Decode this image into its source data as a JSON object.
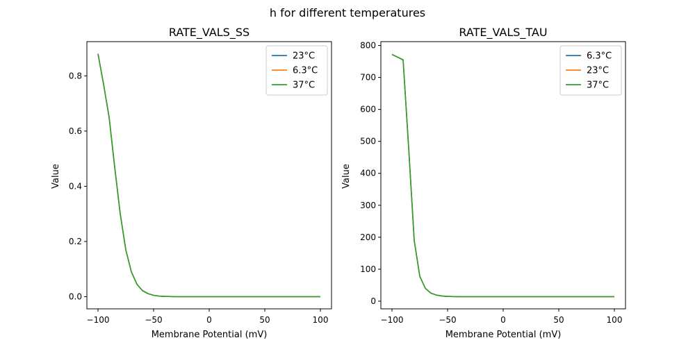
{
  "figure": {
    "suptitle": "h for different temperatures"
  },
  "chart_data": [
    {
      "type": "line",
      "title": "RATE_VALS_SS",
      "xlabel": "Membrane Potential (mV)",
      "ylabel": "Value",
      "xlim": [
        -110,
        110
      ],
      "ylim": [
        -0.044,
        0.924
      ],
      "xticks": [
        -100,
        -50,
        0,
        50,
        100
      ],
      "xtick_labels": [
        "−100",
        "−50",
        "0",
        "50",
        "100"
      ],
      "yticks": [
        0.0,
        0.2,
        0.4,
        0.6,
        0.8
      ],
      "ytick_labels": [
        "0.0",
        "0.2",
        "0.4",
        "0.6",
        "0.8"
      ],
      "grid": false,
      "legend": "upper-right",
      "x": [
        -100,
        -95,
        -90,
        -85,
        -80,
        -75,
        -70,
        -65,
        -60,
        -55,
        -50,
        -45,
        -40,
        -30,
        -20,
        0,
        50,
        100
      ],
      "series": [
        {
          "name": "23°C",
          "color": "#1f77b4",
          "values": [
            0.88,
            0.77,
            0.65,
            0.47,
            0.3,
            0.17,
            0.09,
            0.045,
            0.022,
            0.011,
            0.005,
            0.002,
            0.001,
            0.0,
            0.0,
            0.0,
            0.0,
            0.0
          ]
        },
        {
          "name": "6.3°C",
          "color": "#ff7f0e",
          "values": [
            0.88,
            0.77,
            0.65,
            0.47,
            0.3,
            0.17,
            0.09,
            0.045,
            0.022,
            0.011,
            0.005,
            0.002,
            0.001,
            0.0,
            0.0,
            0.0,
            0.0,
            0.0
          ]
        },
        {
          "name": "37°C",
          "color": "#2ca02c",
          "values": [
            0.88,
            0.77,
            0.65,
            0.47,
            0.3,
            0.17,
            0.09,
            0.045,
            0.022,
            0.011,
            0.005,
            0.002,
            0.001,
            0.0,
            0.0,
            0.0,
            0.0,
            0.0
          ]
        }
      ]
    },
    {
      "type": "line",
      "title": "RATE_VALS_TAU",
      "xlabel": "Membrane Potential (mV)",
      "ylabel": "Value",
      "xlim": [
        -110,
        110
      ],
      "ylim": [
        -24,
        812
      ],
      "xticks": [
        -100,
        -50,
        0,
        50,
        100
      ],
      "xtick_labels": [
        "−100",
        "−50",
        "0",
        "50",
        "100"
      ],
      "yticks": [
        0,
        100,
        200,
        300,
        400,
        500,
        600,
        700,
        800
      ],
      "ytick_labels": [
        "0",
        "100",
        "200",
        "300",
        "400",
        "500",
        "600",
        "700",
        "800"
      ],
      "grid": false,
      "legend": "upper-right",
      "x": [
        -100,
        -90,
        -85,
        -80,
        -75,
        -70,
        -65,
        -60,
        -55,
        -50,
        -45,
        -40,
        -30,
        0,
        50,
        100
      ],
      "series": [
        {
          "name": "6.3°C",
          "color": "#1f77b4",
          "values": [
            772,
            755,
            480,
            190,
            78,
            40,
            25,
            19,
            16,
            15,
            14.5,
            14,
            14,
            14,
            14,
            14
          ]
        },
        {
          "name": "23°C",
          "color": "#ff7f0e",
          "values": [
            772,
            755,
            480,
            190,
            78,
            40,
            25,
            19,
            16,
            15,
            14.5,
            14,
            14,
            14,
            14,
            14
          ]
        },
        {
          "name": "37°C",
          "color": "#2ca02c",
          "values": [
            772,
            755,
            480,
            190,
            78,
            40,
            25,
            19,
            16,
            15,
            14.5,
            14,
            14,
            14,
            14,
            14
          ]
        }
      ]
    }
  ]
}
